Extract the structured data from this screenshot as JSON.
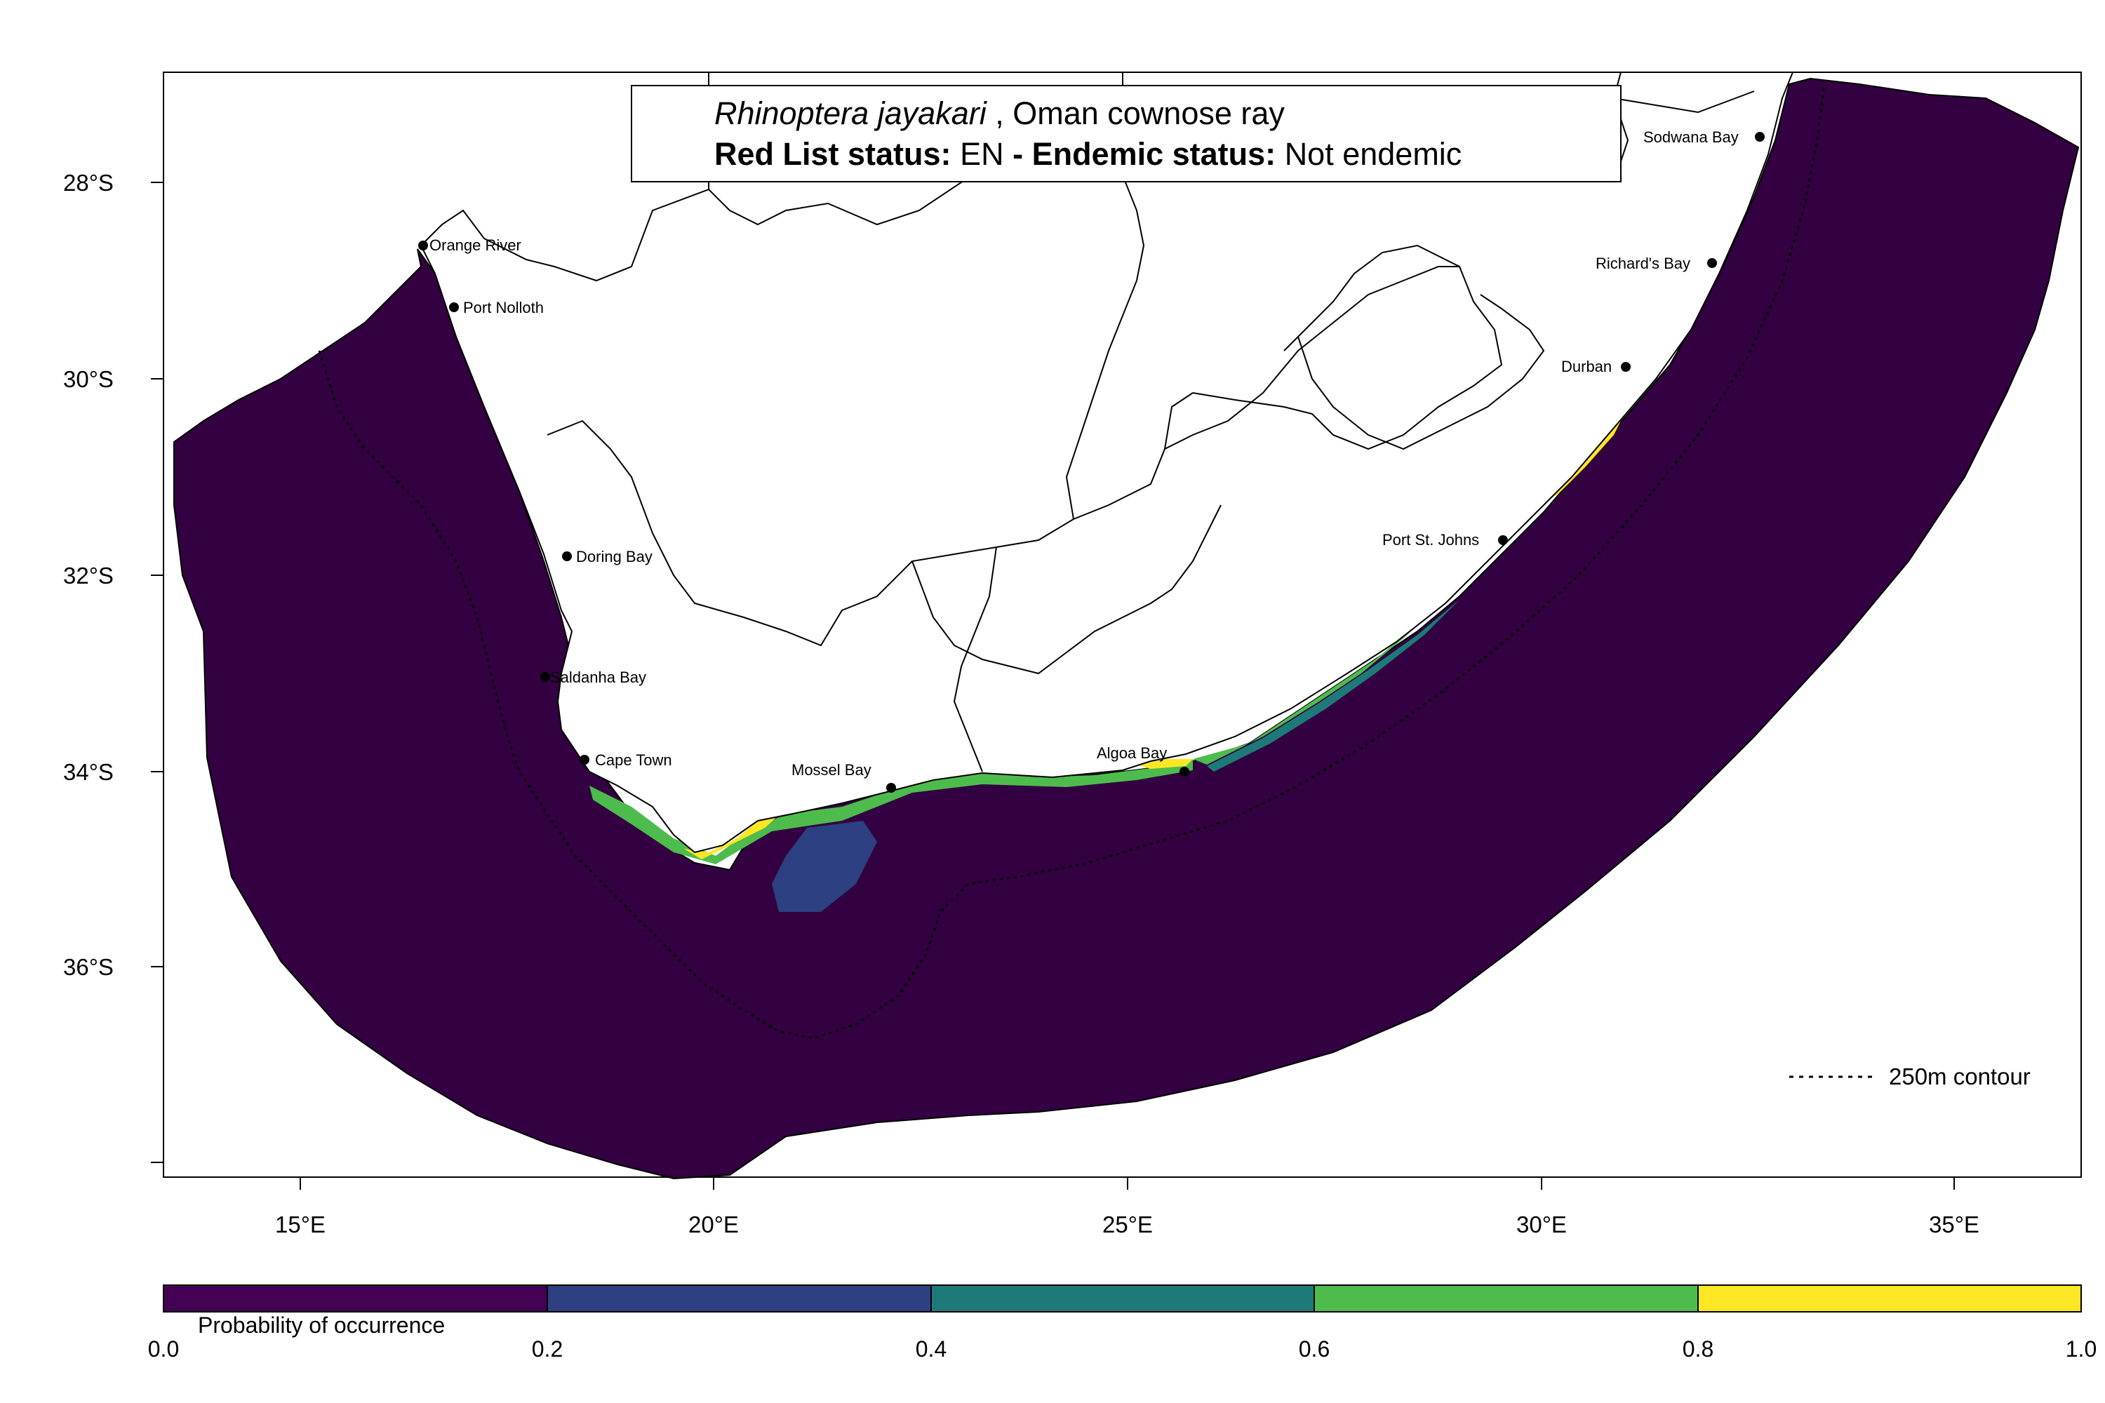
{
  "title": {
    "species": "Rhinoptera jayakari",
    "common_name": ", Oman cownose ray",
    "red_list_label": "Red List status:",
    "red_list_value": "EN",
    "endemic_label": " - Endemic status:",
    "endemic_value": "Not endemic"
  },
  "axes": {
    "lon_ticks": [
      "15°E",
      "20°E",
      "25°E",
      "30°E",
      "35°E"
    ],
    "lat_ticks": [
      "28°S",
      "30°S",
      "32°S",
      "34°S",
      "36°S"
    ]
  },
  "places": [
    {
      "name": "Orange River"
    },
    {
      "name": "Port Nolloth"
    },
    {
      "name": "Doring Bay"
    },
    {
      "name": "Saldanha Bay"
    },
    {
      "name": "Cape Town"
    },
    {
      "name": "Mossel Bay"
    },
    {
      "name": "Algoa Bay"
    },
    {
      "name": "Port St. Johns"
    },
    {
      "name": "Durban"
    },
    {
      "name": "Richard's Bay"
    },
    {
      "name": "Sodwana Bay"
    }
  ],
  "contour_legend": "250m contour",
  "colorbar": {
    "label": "Probability of occurrence",
    "ticks": [
      "0.0",
      "0.2",
      "0.4",
      "0.6",
      "0.8",
      "1.0"
    ],
    "colors": [
      "#440154",
      "#2d4081",
      "#1e7a78",
      "#4dbc4c",
      "#fde725"
    ]
  },
  "colors": {
    "ocean_low": "#330042",
    "class_0_2": "#2d4081",
    "class_0_4": "#1e7a78",
    "class_0_6": "#4dbc4c",
    "class_0_8": "#fde725"
  }
}
